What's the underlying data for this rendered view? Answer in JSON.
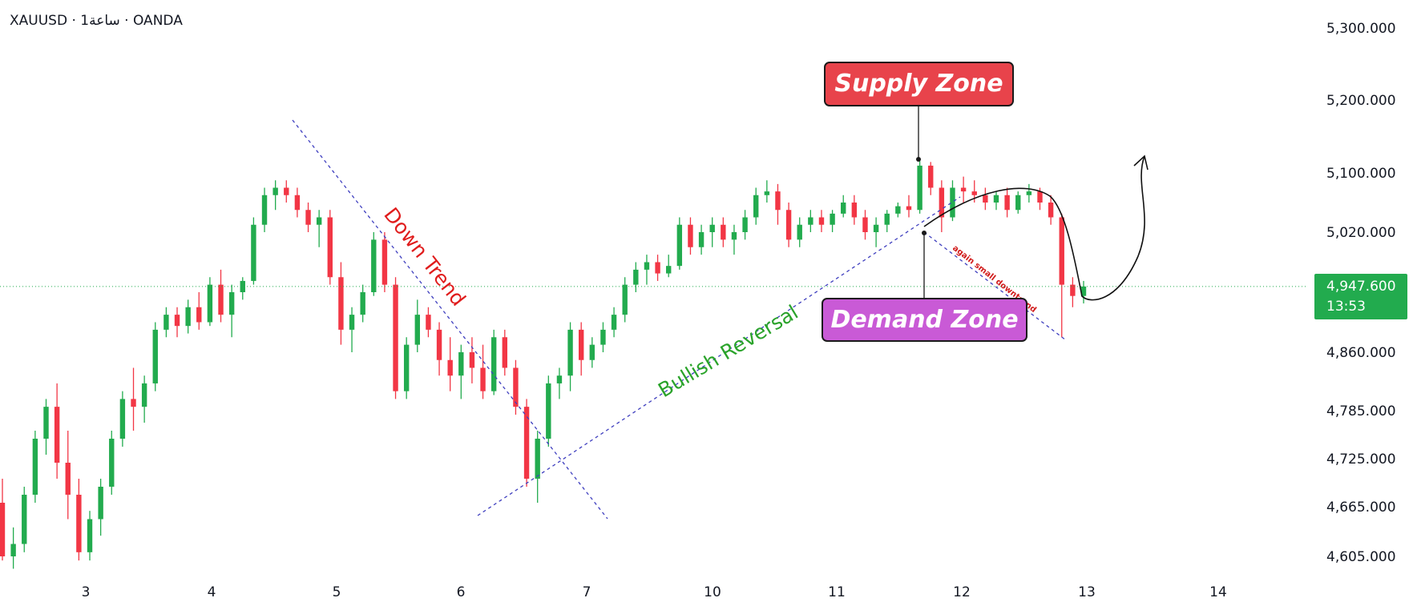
{
  "header": {
    "symbol_text": "XAUUSD · 1ساعة · OANDA"
  },
  "price_tag": {
    "price": "4,947.600",
    "countdown": "13:53"
  },
  "annotations": {
    "supply_zone": "Supply Zone",
    "demand_zone": "Demand Zone",
    "down_trend": "Down Trend",
    "bullish_reversal": "Bullish Reversal",
    "small_downtrend": "again small downtrend"
  },
  "colors": {
    "up": "#26a69a",
    "up_candle": "#22ab4e",
    "down_candle": "#f23645",
    "supply": "#e8434b",
    "demand": "#c95ad6",
    "trendline": "#3f3fbf",
    "down_trend_text": "#e01c1c",
    "bullish_text": "#2aa32a",
    "current_price_line": "#22ab4e"
  },
  "chart_data": {
    "type": "candlestick",
    "title": "XAUUSD · 1ساعة · OANDA",
    "y_ticks": [
      5300,
      5200,
      5100,
      5020,
      4947.6,
      4860,
      4785,
      4725,
      4665,
      4605
    ],
    "y_tick_labels": [
      "5,300.000",
      "5,200.000",
      "5,100.000",
      "5,020.000",
      "4,860.000",
      "4,785.000",
      "4,725.000",
      "4,665.000",
      "4,605.000"
    ],
    "x_tick_labels": [
      "3",
      "4",
      "5",
      "6",
      "7",
      "10",
      "11",
      "12",
      "13",
      "14"
    ],
    "last_price": 4947.6,
    "grid": false,
    "series": [
      {
        "name": "XAUUSD",
        "candles": [
          [
            4670,
            4700,
            4600,
            4605
          ],
          [
            4605,
            4640,
            4590,
            4620
          ],
          [
            4620,
            4690,
            4610,
            4680
          ],
          [
            4680,
            4760,
            4670,
            4750
          ],
          [
            4750,
            4800,
            4730,
            4790
          ],
          [
            4790,
            4820,
            4700,
            4720
          ],
          [
            4720,
            4760,
            4650,
            4680
          ],
          [
            4680,
            4700,
            4600,
            4610
          ],
          [
            4610,
            4660,
            4600,
            4650
          ],
          [
            4650,
            4700,
            4630,
            4690
          ],
          [
            4690,
            4760,
            4680,
            4750
          ],
          [
            4750,
            4810,
            4740,
            4800
          ],
          [
            4800,
            4840,
            4760,
            4790
          ],
          [
            4790,
            4830,
            4770,
            4820
          ],
          [
            4820,
            4900,
            4810,
            4890
          ],
          [
            4890,
            4920,
            4880,
            4910
          ],
          [
            4910,
            4920,
            4880,
            4895
          ],
          [
            4895,
            4930,
            4885,
            4920
          ],
          [
            4920,
            4940,
            4890,
            4900
          ],
          [
            4900,
            4960,
            4895,
            4950
          ],
          [
            4950,
            4970,
            4900,
            4910
          ],
          [
            4910,
            4950,
            4880,
            4940
          ],
          [
            4940,
            4960,
            4930,
            4955
          ],
          [
            4955,
            5040,
            4950,
            5030
          ],
          [
            5030,
            5080,
            5020,
            5070
          ],
          [
            5070,
            5090,
            5050,
            5080
          ],
          [
            5080,
            5090,
            5060,
            5070
          ],
          [
            5070,
            5080,
            5040,
            5050
          ],
          [
            5050,
            5060,
            5020,
            5030
          ],
          [
            5030,
            5050,
            5000,
            5040
          ],
          [
            5040,
            5050,
            4950,
            4960
          ],
          [
            4960,
            4980,
            4870,
            4890
          ],
          [
            4890,
            4920,
            4860,
            4910
          ],
          [
            4910,
            4950,
            4900,
            4940
          ],
          [
            4940,
            5020,
            4935,
            5010
          ],
          [
            5010,
            5020,
            4940,
            4950
          ],
          [
            4950,
            4960,
            4800,
            4810
          ],
          [
            4810,
            4880,
            4800,
            4870
          ],
          [
            4870,
            4930,
            4860,
            4910
          ],
          [
            4910,
            4920,
            4880,
            4890
          ],
          [
            4890,
            4900,
            4830,
            4850
          ],
          [
            4850,
            4880,
            4810,
            4830
          ],
          [
            4830,
            4870,
            4800,
            4860
          ],
          [
            4860,
            4880,
            4820,
            4840
          ],
          [
            4840,
            4870,
            4800,
            4810
          ],
          [
            4810,
            4890,
            4805,
            4880
          ],
          [
            4880,
            4890,
            4830,
            4840
          ],
          [
            4840,
            4850,
            4780,
            4790
          ],
          [
            4790,
            4800,
            4690,
            4700
          ],
          [
            4700,
            4760,
            4670,
            4750
          ],
          [
            4750,
            4830,
            4740,
            4820
          ],
          [
            4820,
            4840,
            4800,
            4830
          ],
          [
            4830,
            4900,
            4810,
            4890
          ],
          [
            4890,
            4900,
            4830,
            4850
          ],
          [
            4850,
            4880,
            4840,
            4870
          ],
          [
            4870,
            4900,
            4860,
            4890
          ],
          [
            4890,
            4920,
            4880,
            4910
          ],
          [
            4910,
            4960,
            4900,
            4950
          ],
          [
            4950,
            4980,
            4940,
            4970
          ],
          [
            4970,
            4990,
            4950,
            4980
          ],
          [
            4980,
            4990,
            4955,
            4965
          ],
          [
            4965,
            4990,
            4960,
            4975
          ],
          [
            4975,
            5040,
            4970,
            5030
          ],
          [
            5030,
            5040,
            4990,
            5000
          ],
          [
            5000,
            5030,
            4990,
            5020
          ],
          [
            5020,
            5040,
            5000,
            5030
          ],
          [
            5030,
            5040,
            5000,
            5010
          ],
          [
            5010,
            5030,
            4990,
            5020
          ],
          [
            5020,
            5050,
            5010,
            5040
          ],
          [
            5040,
            5080,
            5030,
            5070
          ],
          [
            5070,
            5090,
            5060,
            5075
          ],
          [
            5075,
            5085,
            5030,
            5050
          ],
          [
            5050,
            5060,
            5000,
            5010
          ],
          [
            5010,
            5040,
            5000,
            5030
          ],
          [
            5030,
            5050,
            5020,
            5040
          ],
          [
            5040,
            5050,
            5020,
            5030
          ],
          [
            5030,
            5050,
            5020,
            5045
          ],
          [
            5045,
            5070,
            5040,
            5060
          ],
          [
            5060,
            5070,
            5030,
            5040
          ],
          [
            5040,
            5050,
            5010,
            5020
          ],
          [
            5020,
            5040,
            5000,
            5030
          ],
          [
            5030,
            5050,
            5020,
            5045
          ],
          [
            5045,
            5060,
            5040,
            5055
          ],
          [
            5055,
            5070,
            5040,
            5050
          ],
          [
            5050,
            5120,
            5045,
            5110
          ],
          [
            5110,
            5115,
            5070,
            5080
          ],
          [
            5080,
            5090,
            5020,
            5040
          ],
          [
            5040,
            5090,
            5035,
            5080
          ],
          [
            5080,
            5095,
            5060,
            5075
          ],
          [
            5075,
            5090,
            5060,
            5070
          ],
          [
            5070,
            5080,
            5050,
            5060
          ],
          [
            5060,
            5075,
            5050,
            5070
          ],
          [
            5070,
            5080,
            5040,
            5050
          ],
          [
            5050,
            5075,
            5045,
            5070
          ],
          [
            5070,
            5085,
            5060,
            5075
          ],
          [
            5075,
            5080,
            5050,
            5060
          ],
          [
            5060,
            5070,
            5030,
            5040
          ],
          [
            5040,
            5045,
            4880,
            4950
          ],
          [
            4950,
            4960,
            4920,
            4935
          ],
          [
            4935,
            4955,
            4925,
            4947.6
          ]
        ]
      }
    ]
  }
}
